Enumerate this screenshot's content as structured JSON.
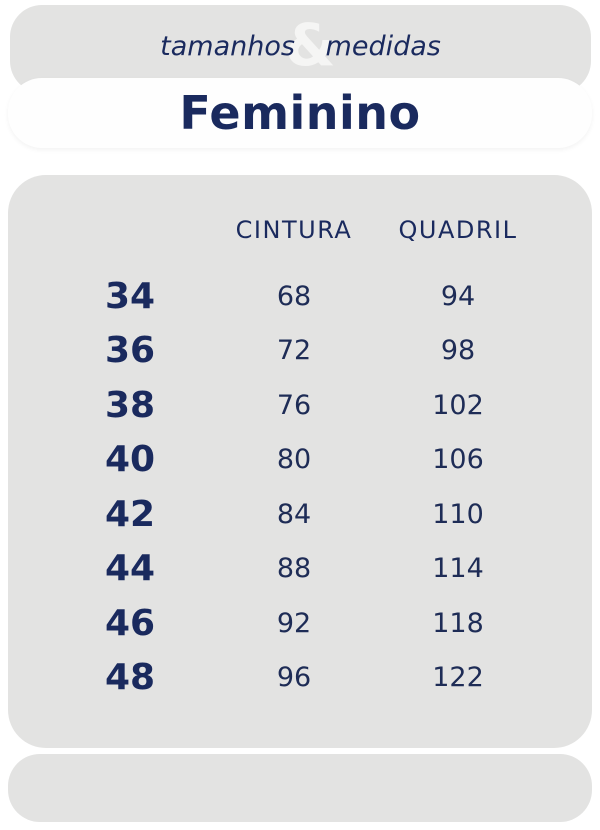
{
  "header": {
    "tagline_left": "tamanhos",
    "tagline_ampersand": "&",
    "tagline_right": "medidas",
    "title": "Feminino"
  },
  "chart_data": {
    "type": "table",
    "title": "tamanhos & medidas",
    "subtitle": "Feminino",
    "columns": [
      "",
      "CINTURA",
      "QUADRIL"
    ],
    "rows": [
      [
        "34",
        "68",
        "94"
      ],
      [
        "36",
        "72",
        "98"
      ],
      [
        "38",
        "76",
        "102"
      ],
      [
        "40",
        "80",
        "106"
      ],
      [
        "42",
        "84",
        "110"
      ],
      [
        "44",
        "88",
        "114"
      ],
      [
        "46",
        "92",
        "118"
      ],
      [
        "48",
        "96",
        "122"
      ]
    ]
  },
  "colors": {
    "navy": "#1a2a5e",
    "panel_gray": "#e3e3e2",
    "ampersand_light": "#f5f5f4",
    "card_white": "#fefefe"
  }
}
